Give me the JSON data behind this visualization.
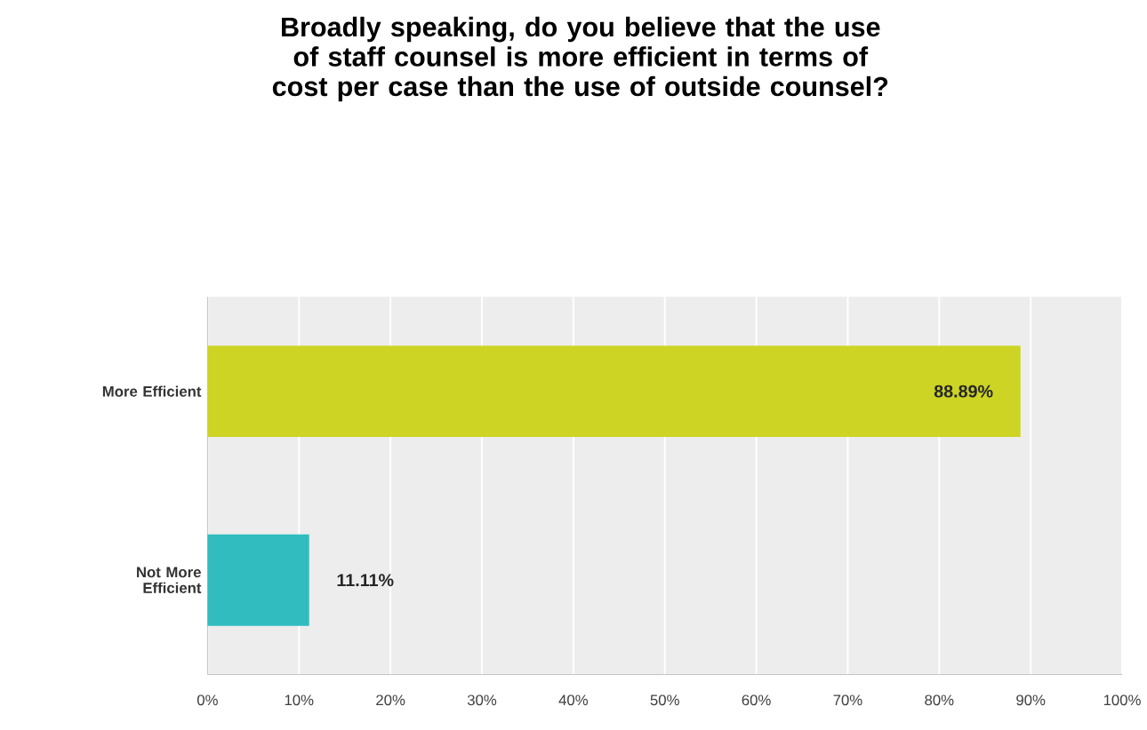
{
  "chart_data": {
    "type": "bar",
    "orientation": "horizontal",
    "title": "Broadly speaking, do you believe that the use of staff counsel is more efficient in terms of cost per case than the use of outside counsel?",
    "categories": [
      "More Efficient",
      "Not More Efficient"
    ],
    "values": [
      88.89,
      11.11
    ],
    "colors": [
      "#cdd424",
      "#31bdbf"
    ],
    "value_labels": [
      "88.89%",
      "11.11%"
    ],
    "xlim": [
      0,
      100
    ],
    "xticks": [
      {
        "value": 0,
        "label": "0%"
      },
      {
        "value": 10,
        "label": "10%"
      },
      {
        "value": 20,
        "label": "20%"
      },
      {
        "value": 30,
        "label": "30%"
      },
      {
        "value": 40,
        "label": "40%"
      },
      {
        "value": 50,
        "label": "50%"
      },
      {
        "value": 60,
        "label": "60%"
      },
      {
        "value": 70,
        "label": "70%"
      },
      {
        "value": 80,
        "label": "80%"
      },
      {
        "value": 90,
        "label": "90%"
      },
      {
        "value": 100,
        "label": "100%"
      }
    ],
    "grid": "x"
  }
}
